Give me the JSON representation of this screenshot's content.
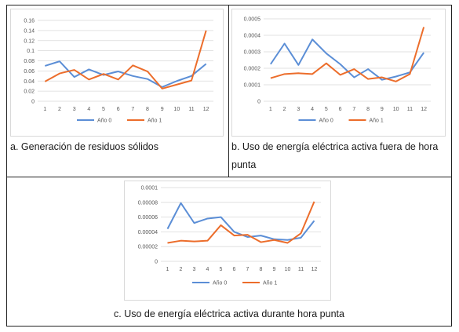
{
  "colors": {
    "blue": "#5b8ed6",
    "orange": "#ec6d2b",
    "grid": "#d9d9d9",
    "axis_text": "#595959"
  },
  "captions": {
    "a": "a. Generación de residuos sólidos",
    "b": "b. Uso de energía eléctrica activa fuera de hora punta",
    "c": "c. Uso de energía eléctrica activa durante hora punta"
  },
  "chart_data": [
    {
      "id": "a",
      "type": "line",
      "x": [
        1,
        2,
        3,
        4,
        5,
        6,
        7,
        8,
        9,
        10,
        11,
        12
      ],
      "yticks": [
        "0",
        "0.02",
        "0.04",
        "0.06",
        "0.08",
        "0.1",
        "0.12",
        "0.14",
        "0.16"
      ],
      "ylim": [
        0,
        0.16
      ],
      "grid": true,
      "legend": "bottom",
      "series": [
        {
          "name": "Año 0",
          "color": "#5b8ed6",
          "values": [
            0.07,
            0.079,
            0.048,
            0.063,
            0.052,
            0.059,
            0.05,
            0.044,
            0.028,
            0.04,
            0.05,
            0.074
          ]
        },
        {
          "name": "Año 1",
          "color": "#ec6d2b",
          "values": [
            0.039,
            0.055,
            0.062,
            0.043,
            0.054,
            0.043,
            0.071,
            0.059,
            0.025,
            0.033,
            0.041,
            0.14
          ]
        }
      ]
    },
    {
      "id": "b",
      "type": "line",
      "x": [
        1,
        2,
        3,
        4,
        5,
        6,
        7,
        8,
        9,
        10,
        11,
        12
      ],
      "yticks": [
        "0",
        "0.0001",
        "0.0002",
        "0.0003",
        "0.0004",
        "0.0005"
      ],
      "ylim": [
        0,
        0.0005
      ],
      "grid": true,
      "legend": "bottom",
      "series": [
        {
          "name": "Año 0",
          "color": "#5b8ed6",
          "values": [
            0.000225,
            0.00035,
            0.00022,
            0.000375,
            0.00029,
            0.000225,
            0.000145,
            0.000195,
            0.00013,
            0.00015,
            0.000175,
            0.000295
          ]
        },
        {
          "name": "Año 1",
          "color": "#ec6d2b",
          "values": [
            0.00014,
            0.000165,
            0.00017,
            0.000165,
            0.00023,
            0.00016,
            0.000195,
            0.000135,
            0.000145,
            0.00012,
            0.000165,
            0.00045
          ]
        }
      ]
    },
    {
      "id": "c",
      "type": "line",
      "x": [
        1,
        2,
        3,
        4,
        5,
        6,
        7,
        8,
        9,
        10,
        11,
        12
      ],
      "yticks": [
        "0",
        "0.00002",
        "0.00004",
        "0.00006",
        "0.00008",
        "0.0001"
      ],
      "ylim": [
        0,
        0.0001
      ],
      "grid": true,
      "legend": "bottom",
      "series": [
        {
          "name": "Año 0",
          "color": "#5b8ed6",
          "values": [
            4.4e-05,
            7.9e-05,
            5.2e-05,
            5.8e-05,
            6e-05,
            4e-05,
            3.3e-05,
            3.5e-05,
            3e-05,
            2.9e-05,
            3.2e-05,
            5.5e-05
          ]
        },
        {
          "name": "Año 1",
          "color": "#ec6d2b",
          "values": [
            2.5e-05,
            2.8e-05,
            2.7e-05,
            2.8e-05,
            4.9e-05,
            3.5e-05,
            3.6e-05,
            2.6e-05,
            2.9e-05,
            2.5e-05,
            3.8e-05,
            8.1e-05
          ]
        }
      ]
    }
  ]
}
